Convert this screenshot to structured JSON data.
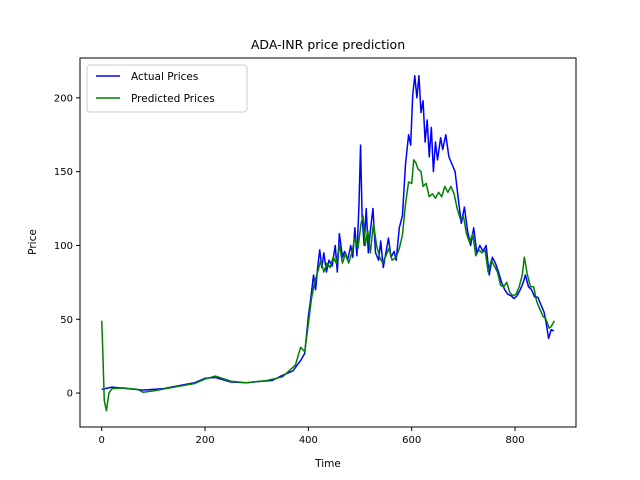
{
  "chart_data": {
    "type": "line",
    "title": "ADA-INR price prediction",
    "xlabel": "Time",
    "ylabel": "Price",
    "xlim": [
      -42,
      918
    ],
    "ylim": [
      -23,
      227
    ],
    "xticks": [
      0,
      200,
      400,
      600,
      800
    ],
    "yticks": [
      0,
      50,
      100,
      150,
      200
    ],
    "grid": false,
    "legend_position": "top-left",
    "series": [
      {
        "name": "Actual Prices",
        "color": "#0000ff",
        "points": [
          [
            0,
            2.5
          ],
          [
            20,
            4
          ],
          [
            50,
            3
          ],
          [
            80,
            2
          ],
          [
            120,
            3
          ],
          [
            150,
            5
          ],
          [
            180,
            7
          ],
          [
            200,
            10
          ],
          [
            220,
            10.5
          ],
          [
            250,
            7.5
          ],
          [
            280,
            7
          ],
          [
            310,
            8
          ],
          [
            330,
            8.5
          ],
          [
            350,
            12
          ],
          [
            370,
            15
          ],
          [
            385,
            22
          ],
          [
            393,
            27
          ],
          [
            400,
            52
          ],
          [
            405,
            65
          ],
          [
            410,
            80
          ],
          [
            414,
            70
          ],
          [
            418,
            85
          ],
          [
            422,
            97
          ],
          [
            426,
            85
          ],
          [
            430,
            95
          ],
          [
            435,
            82
          ],
          [
            440,
            90
          ],
          [
            446,
            86
          ],
          [
            452,
            100
          ],
          [
            456,
            82
          ],
          [
            460,
            108
          ],
          [
            466,
            92
          ],
          [
            470,
            96
          ],
          [
            476,
            90
          ],
          [
            482,
            100
          ],
          [
            486,
            92
          ],
          [
            490,
            112
          ],
          [
            494,
            93
          ],
          [
            498,
            128
          ],
          [
            501,
            168
          ],
          [
            504,
            120
          ],
          [
            508,
            100
          ],
          [
            512,
            125
          ],
          [
            516,
            95
          ],
          [
            520,
            110
          ],
          [
            525,
            125
          ],
          [
            530,
            95
          ],
          [
            536,
            90
          ],
          [
            540,
            103
          ],
          [
            545,
            85
          ],
          [
            550,
            95
          ],
          [
            555,
            105
          ],
          [
            560,
            92
          ],
          [
            566,
            96
          ],
          [
            570,
            90
          ],
          [
            576,
            112
          ],
          [
            582,
            120
          ],
          [
            588,
            155
          ],
          [
            594,
            175
          ],
          [
            598,
            168
          ],
          [
            602,
            202
          ],
          [
            606,
            215
          ],
          [
            610,
            200
          ],
          [
            614,
            215
          ],
          [
            618,
            190
          ],
          [
            622,
            198
          ],
          [
            626,
            170
          ],
          [
            630,
            185
          ],
          [
            634,
            160
          ],
          [
            638,
            180
          ],
          [
            642,
            150
          ],
          [
            646,
            170
          ],
          [
            650,
            158
          ],
          [
            656,
            173
          ],
          [
            660,
            165
          ],
          [
            666,
            175
          ],
          [
            672,
            160
          ],
          [
            678,
            155
          ],
          [
            684,
            150
          ],
          [
            690,
            132
          ],
          [
            696,
            115
          ],
          [
            702,
            126
          ],
          [
            708,
            110
          ],
          [
            714,
            100
          ],
          [
            720,
            112
          ],
          [
            726,
            95
          ],
          [
            732,
            100
          ],
          [
            738,
            96
          ],
          [
            744,
            100
          ],
          [
            750,
            80
          ],
          [
            756,
            92
          ],
          [
            762,
            88
          ],
          [
            768,
            82
          ],
          [
            774,
            75
          ],
          [
            780,
            70
          ],
          [
            786,
            67
          ],
          [
            792,
            66
          ],
          [
            798,
            64
          ],
          [
            804,
            66
          ],
          [
            810,
            70
          ],
          [
            816,
            75
          ],
          [
            820,
            80
          ],
          [
            826,
            72
          ],
          [
            832,
            70
          ],
          [
            838,
            65
          ],
          [
            844,
            65
          ],
          [
            850,
            60
          ],
          [
            856,
            55
          ],
          [
            860,
            48
          ],
          [
            865,
            37
          ],
          [
            870,
            43
          ],
          [
            875,
            42
          ]
        ]
      },
      {
        "name": "Predicted Prices",
        "color": "#008000",
        "points": [
          [
            0,
            49
          ],
          [
            2,
            30
          ],
          [
            5,
            -5
          ],
          [
            9,
            -12
          ],
          [
            14,
            0
          ],
          [
            20,
            3
          ],
          [
            40,
            3.5
          ],
          [
            70,
            2.5
          ],
          [
            80,
            0.5
          ],
          [
            100,
            1.5
          ],
          [
            140,
            4
          ],
          [
            180,
            6.5
          ],
          [
            200,
            9.5
          ],
          [
            220,
            11.5
          ],
          [
            250,
            8
          ],
          [
            280,
            7
          ],
          [
            320,
            8.5
          ],
          [
            350,
            11
          ],
          [
            375,
            19
          ],
          [
            385,
            31
          ],
          [
            393,
            28
          ],
          [
            400,
            47
          ],
          [
            406,
            64
          ],
          [
            412,
            75
          ],
          [
            418,
            82
          ],
          [
            424,
            90
          ],
          [
            430,
            82
          ],
          [
            436,
            88
          ],
          [
            442,
            85
          ],
          [
            448,
            92
          ],
          [
            454,
            88
          ],
          [
            460,
            100
          ],
          [
            466,
            88
          ],
          [
            472,
            95
          ],
          [
            478,
            88
          ],
          [
            484,
            95
          ],
          [
            490,
            105
          ],
          [
            496,
            98
          ],
          [
            502,
            115
          ],
          [
            506,
            120
          ],
          [
            510,
            100
          ],
          [
            515,
            110
          ],
          [
            520,
            95
          ],
          [
            526,
            115
          ],
          [
            532,
            100
          ],
          [
            538,
            92
          ],
          [
            544,
            88
          ],
          [
            550,
            93
          ],
          [
            556,
            98
          ],
          [
            562,
            90
          ],
          [
            570,
            92
          ],
          [
            576,
            98
          ],
          [
            582,
            107
          ],
          [
            588,
            128
          ],
          [
            594,
            143
          ],
          [
            600,
            142
          ],
          [
            604,
            158
          ],
          [
            608,
            156
          ],
          [
            612,
            152
          ],
          [
            618,
            150
          ],
          [
            622,
            140
          ],
          [
            628,
            142
          ],
          [
            634,
            133
          ],
          [
            640,
            135
          ],
          [
            646,
            132
          ],
          [
            652,
            136
          ],
          [
            658,
            133
          ],
          [
            664,
            140
          ],
          [
            670,
            136
          ],
          [
            676,
            140
          ],
          [
            682,
            135
          ],
          [
            688,
            125
          ],
          [
            694,
            118
          ],
          [
            700,
            120
          ],
          [
            706,
            108
          ],
          [
            712,
            102
          ],
          [
            718,
            108
          ],
          [
            724,
            93
          ],
          [
            730,
            97
          ],
          [
            736,
            95
          ],
          [
            742,
            97
          ],
          [
            748,
            82
          ],
          [
            754,
            90
          ],
          [
            760,
            86
          ],
          [
            766,
            82
          ],
          [
            772,
            73
          ],
          [
            778,
            72
          ],
          [
            784,
            75
          ],
          [
            790,
            68
          ],
          [
            796,
            66
          ],
          [
            802,
            67
          ],
          [
            808,
            72
          ],
          [
            814,
            80
          ],
          [
            818,
            92
          ],
          [
            824,
            80
          ],
          [
            830,
            72
          ],
          [
            836,
            72
          ],
          [
            842,
            62
          ],
          [
            848,
            57
          ],
          [
            854,
            52
          ],
          [
            860,
            50
          ],
          [
            866,
            44
          ],
          [
            870,
            45
          ],
          [
            876,
            49
          ]
        ]
      }
    ]
  }
}
